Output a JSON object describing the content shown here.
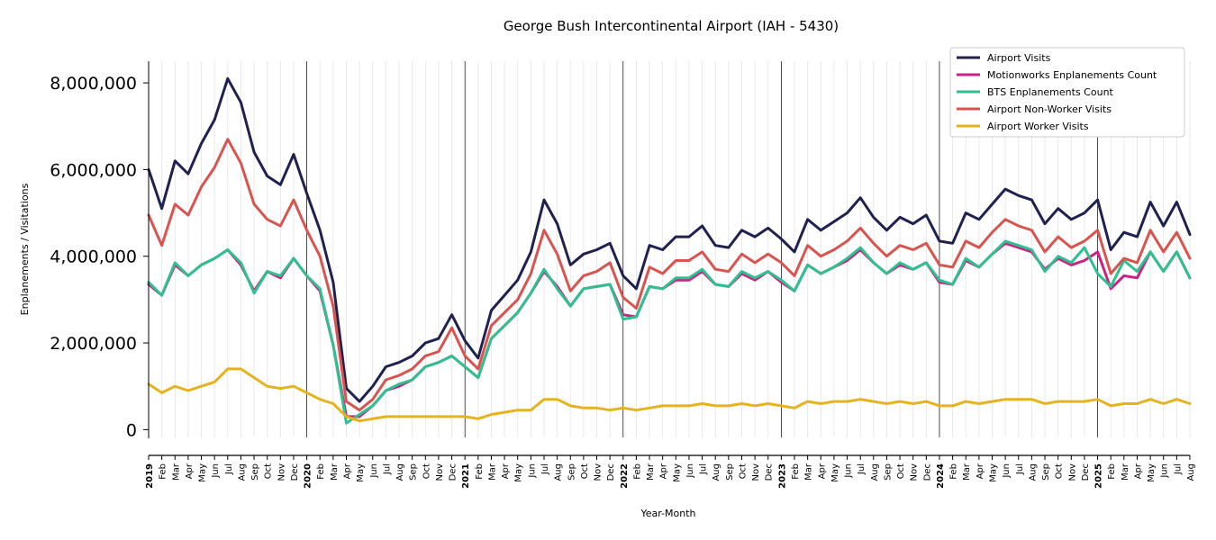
{
  "chart_data": {
    "type": "line",
    "title": "George Bush Intercontinental Airport (IAH - 5430)",
    "xlabel": "Year-Month",
    "ylabel": "Enplanements / Visitations",
    "ylim": [
      -200000,
      8500000
    ],
    "yticks": [
      {
        "value": 0,
        "label": "0"
      },
      {
        "value": 2000000,
        "label": "2,000,000"
      },
      {
        "value": 4000000,
        "label": "4,000,000"
      },
      {
        "value": 6000000,
        "label": "6,000,000"
      },
      {
        "value": 8000000,
        "label": "8,000,000"
      }
    ],
    "x": [
      "2019",
      "Feb",
      "Mar",
      "Apr",
      "May",
      "Jun",
      "Jul",
      "Aug",
      "Sep",
      "Oct",
      "Nov",
      "Dec",
      "2020",
      "Feb",
      "Mar",
      "Apr",
      "May",
      "Jun",
      "Jul",
      "Aug",
      "Sep",
      "Oct",
      "Nov",
      "Dec",
      "2021",
      "Feb",
      "Mar",
      "Apr",
      "May",
      "Jun",
      "Jul",
      "Aug",
      "Sep",
      "Oct",
      "Nov",
      "Dec",
      "2022",
      "Feb",
      "Mar",
      "Apr",
      "May",
      "Jun",
      "Jul",
      "Aug",
      "Sep",
      "Oct",
      "Nov",
      "Dec",
      "2023",
      "Feb",
      "Mar",
      "Apr",
      "May",
      "Jun",
      "Jul",
      "Aug",
      "Sep",
      "Oct",
      "Nov",
      "Dec",
      "2024",
      "Feb",
      "Mar",
      "Apr",
      "May",
      "Jun",
      "Jul",
      "Aug",
      "Sep",
      "Oct",
      "Nov",
      "Dec",
      "2025",
      "Feb",
      "Mar",
      "Apr",
      "May",
      "Jun",
      "Jul",
      "Aug"
    ],
    "year_ticks": [
      "2019",
      "2020",
      "2021",
      "2022",
      "2023",
      "2024",
      "2025"
    ],
    "grid": "vertical",
    "legend_position": "top-right",
    "series": [
      {
        "name": "Airport Visits",
        "color": "#1f2150",
        "values": [
          6000000,
          5100000,
          6200000,
          5900000,
          6600000,
          7150000,
          8100000,
          7550000,
          6400000,
          5850000,
          5650000,
          6350000,
          5450000,
          4600000,
          3400000,
          950000,
          650000,
          1000000,
          1450000,
          1550000,
          1700000,
          2000000,
          2100000,
          2650000,
          2050000,
          1650000,
          2750000,
          3100000,
          3450000,
          4100000,
          5300000,
          4750000,
          3800000,
          4050000,
          4150000,
          4300000,
          3550000,
          3250000,
          4250000,
          4150000,
          4450000,
          4450000,
          4700000,
          4250000,
          4200000,
          4600000,
          4450000,
          4650000,
          4400000,
          4100000,
          4850000,
          4600000,
          4800000,
          5000000,
          5350000,
          4900000,
          4600000,
          4900000,
          4750000,
          4950000,
          4350000,
          4300000,
          5000000,
          4850000,
          5200000,
          5550000,
          5400000,
          5300000,
          4750000,
          5100000,
          4850000,
          5000000,
          5300000,
          4150000,
          4550000,
          4450000,
          5250000,
          4700000,
          5250000,
          4500000
        ]
      },
      {
        "name": "Motionworks Enplanements Count",
        "color": "#cc1f87",
        "values": [
          3350000,
          3100000,
          3800000,
          3550000,
          3800000,
          3950000,
          4150000,
          3800000,
          3200000,
          3650000,
          3500000,
          3950000,
          3550000,
          3200000,
          1950000,
          300000,
          300000,
          550000,
          900000,
          1000000,
          1150000,
          1450000,
          1550000,
          1700000,
          1450000,
          1200000,
          2100000,
          2400000,
          2700000,
          3150000,
          3650000,
          3300000,
          2850000,
          3250000,
          3300000,
          3350000,
          2650000,
          2600000,
          3300000,
          3250000,
          3450000,
          3450000,
          3650000,
          3350000,
          3300000,
          3600000,
          3450000,
          3650000,
          3400000,
          3200000,
          3800000,
          3600000,
          3750000,
          3900000,
          4150000,
          3850000,
          3600000,
          3800000,
          3700000,
          3850000,
          3400000,
          3350000,
          3900000,
          3750000,
          4050000,
          4300000,
          4200000,
          4100000,
          3700000,
          3950000,
          3800000,
          3900000,
          4100000,
          3250000,
          3550000,
          3500000,
          4100000,
          3650000,
          4100000,
          3500000
        ]
      },
      {
        "name": "BTS Enplanements Count",
        "color": "#2ec08f",
        "values": [
          3400000,
          3100000,
          3850000,
          3550000,
          3800000,
          3950000,
          4150000,
          3850000,
          3150000,
          3650000,
          3550000,
          3950000,
          3550000,
          3250000,
          1950000,
          150000,
          350000,
          550000,
          900000,
          1050000,
          1150000,
          1450000,
          1550000,
          1700000,
          1450000,
          1200000,
          2100000,
          2400000,
          2700000,
          3150000,
          3700000,
          3250000,
          2850000,
          3250000,
          3300000,
          3350000,
          2550000,
          2600000,
          3300000,
          3250000,
          3500000,
          3500000,
          3700000,
          3350000,
          3300000,
          3650000,
          3500000,
          3650000,
          3450000,
          3200000,
          3800000,
          3600000,
          3750000,
          3950000,
          4200000,
          3850000,
          3600000,
          3850000,
          3700000,
          3850000,
          3450000,
          3350000,
          3950000,
          3750000,
          4050000,
          4350000,
          4250000,
          4150000,
          3650000,
          4000000,
          3850000,
          4200000,
          3600000,
          3300000,
          3900000,
          3650000,
          4100000,
          3650000,
          4100000,
          3500000
        ]
      },
      {
        "name": "Airport Non-Worker Visits",
        "color": "#d9534f",
        "values": [
          4950000,
          4250000,
          5200000,
          4950000,
          5600000,
          6050000,
          6700000,
          6150000,
          5200000,
          4850000,
          4700000,
          5300000,
          4600000,
          4000000,
          2850000,
          650000,
          450000,
          700000,
          1150000,
          1250000,
          1400000,
          1700000,
          1800000,
          2350000,
          1700000,
          1400000,
          2400000,
          2700000,
          3000000,
          3600000,
          4600000,
          4050000,
          3200000,
          3550000,
          3650000,
          3850000,
          3050000,
          2800000,
          3750000,
          3600000,
          3900000,
          3900000,
          4100000,
          3700000,
          3650000,
          4050000,
          3850000,
          4050000,
          3850000,
          3550000,
          4250000,
          4000000,
          4150000,
          4350000,
          4650000,
          4300000,
          4000000,
          4250000,
          4150000,
          4300000,
          3800000,
          3750000,
          4350000,
          4200000,
          4550000,
          4850000,
          4700000,
          4600000,
          4100000,
          4450000,
          4200000,
          4350000,
          4600000,
          3600000,
          3950000,
          3850000,
          4600000,
          4100000,
          4550000,
          3950000
        ]
      },
      {
        "name": "Airport Worker Visits",
        "color": "#e6b31e",
        "values": [
          1050000,
          850000,
          1000000,
          900000,
          1000000,
          1100000,
          1400000,
          1400000,
          1200000,
          1000000,
          950000,
          1000000,
          850000,
          700000,
          600000,
          300000,
          200000,
          250000,
          300000,
          300000,
          300000,
          300000,
          300000,
          300000,
          300000,
          250000,
          350000,
          400000,
          450000,
          450000,
          700000,
          700000,
          550000,
          500000,
          500000,
          450000,
          500000,
          450000,
          500000,
          550000,
          550000,
          550000,
          600000,
          550000,
          550000,
          600000,
          550000,
          600000,
          550000,
          500000,
          650000,
          600000,
          650000,
          650000,
          700000,
          650000,
          600000,
          650000,
          600000,
          650000,
          550000,
          550000,
          650000,
          600000,
          650000,
          700000,
          700000,
          700000,
          600000,
          650000,
          650000,
          650000,
          700000,
          550000,
          600000,
          600000,
          700000,
          600000,
          700000,
          600000
        ]
      }
    ]
  }
}
